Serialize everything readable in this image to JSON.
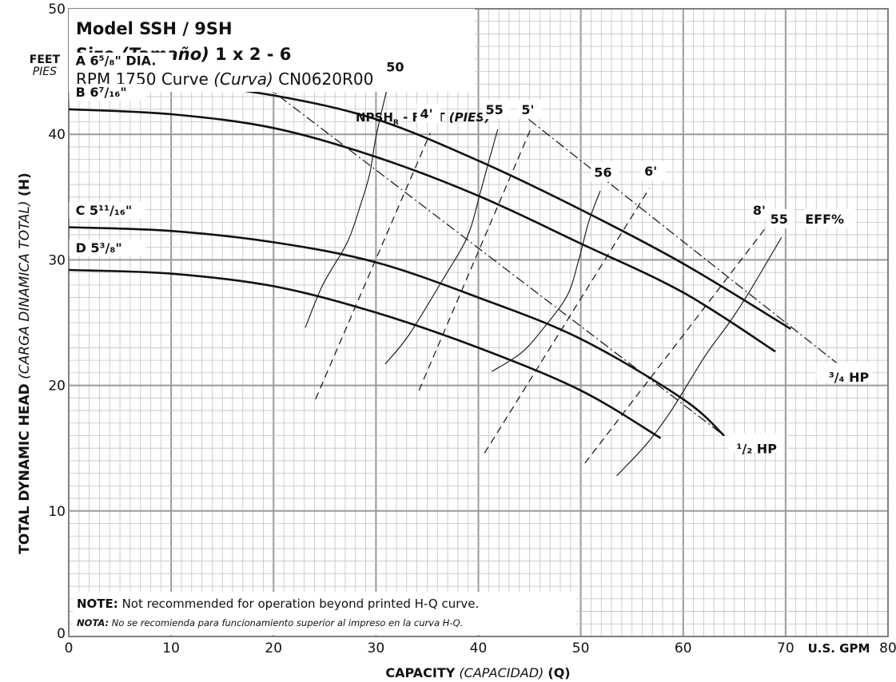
{
  "chart_data": {
    "type": "line",
    "title": {
      "model_prefix": "Model",
      "model": "SSH / 9SH",
      "size_prefix": "Size",
      "size_es": "(Tamaño)",
      "size": "1 x 2 - 6",
      "rpm": "RPM 1750",
      "curve_prefix": "Curve",
      "curve_es": "(Curva)",
      "curve": "CN0620R00"
    },
    "y_unit": "FEET",
    "y_unit_es": "PIES",
    "ylabel": "TOTAL DYNAMIC HEAD",
    "ylabel_es": "(CARGA DINAMICA TOTAL)",
    "ylabel_sym": "(H)",
    "xlabel": "CAPACITY",
    "xlabel_es": "(CAPACIDAD)",
    "xlabel_sym": "(Q)",
    "x_unit": "U.S. GPM",
    "xlim": [
      0,
      80
    ],
    "ylim": [
      0,
      50
    ],
    "x_ticks": [
      "0",
      "10",
      "20",
      "30",
      "40",
      "50",
      "60",
      "70",
      "80"
    ],
    "y_ticks": [
      "0",
      "10",
      "20",
      "30",
      "40",
      "50"
    ],
    "grid": true,
    "impeller_curves": [
      {
        "name": "A 6⁵/₈\" DIA.",
        "x": [
          0,
          10,
          20,
          30,
          40,
          50,
          60,
          70.5
        ],
        "y": [
          44.4,
          44.1,
          43.1,
          41.2,
          37.9,
          34.0,
          29.7,
          24.5
        ]
      },
      {
        "name": "B 6⁷/₁₆\"",
        "x": [
          0,
          10,
          20,
          30,
          40,
          50,
          60,
          69
        ],
        "y": [
          42.0,
          41.6,
          40.5,
          38.2,
          35.1,
          31.3,
          27.4,
          22.7
        ]
      },
      {
        "name": "C 5¹¹/₁₆\"",
        "x": [
          0,
          10,
          20,
          30,
          40,
          50,
          60,
          64
        ],
        "y": [
          32.6,
          32.3,
          31.4,
          29.8,
          27.0,
          23.7,
          18.9,
          16.0
        ]
      },
      {
        "name": "D 5³/₈\"",
        "x": [
          0,
          10,
          20,
          30,
          40,
          50,
          57.8
        ],
        "y": [
          29.2,
          28.9,
          27.9,
          25.8,
          23.0,
          19.6,
          15.8
        ]
      }
    ],
    "efficiency_label": "EFF%",
    "efficiency_curves": [
      {
        "name": "50",
        "x": [
          23.1,
          24.8,
          27.2,
          28.5,
          29.4,
          30.0,
          31.1
        ],
        "y": [
          24.6,
          28.0,
          31.4,
          34.4,
          36.9,
          39.8,
          43.7
        ]
      },
      {
        "name": "55",
        "x": [
          30.9,
          33.2,
          36.5,
          38.9,
          40.2,
          41.2,
          41.9
        ],
        "y": [
          21.7,
          24.0,
          28.4,
          31.8,
          35.4,
          38.4,
          40.4
        ]
      },
      {
        "name": "56",
        "x": [
          41.3,
          44.2,
          46.4,
          48.7,
          49.8,
          50.8,
          51.9
        ],
        "y": [
          21.1,
          22.6,
          24.6,
          27.2,
          30.0,
          33.1,
          35.5
        ]
      },
      {
        "name": "55",
        "x": [
          53.5,
          56.5,
          59.0,
          62.1,
          64.5,
          66.5,
          69.6
        ],
        "y": [
          12.8,
          15.4,
          18.2,
          22.3,
          25.0,
          27.5,
          31.8
        ]
      }
    ],
    "npsh_title": "NPSH",
    "npsh_sub": "R",
    "npsh_suffix": " - FEET",
    "npsh_suffix_es": "(PIES)",
    "npsh_curves": [
      {
        "name": "4'",
        "x": [
          24.1,
          35.3
        ],
        "y": [
          18.9,
          40.1
        ]
      },
      {
        "name": "5'",
        "x": [
          34.2,
          45.1
        ],
        "y": [
          19.6,
          40.4
        ]
      },
      {
        "name": "6'",
        "x": [
          40.6,
          56.7
        ],
        "y": [
          14.6,
          35.7
        ]
      },
      {
        "name": "8'",
        "x": [
          50.4,
          68.1
        ],
        "y": [
          13.8,
          32.6
        ]
      }
    ],
    "power_curves": [
      {
        "name": "¹/₂ HP",
        "x": [
          13.7,
          64.0
        ],
        "y": [
          47.3,
          16.0
        ]
      },
      {
        "name": "³/₄ HP",
        "x": [
          44.9,
          75.9
        ],
        "y": [
          41.2,
          21.2
        ]
      }
    ],
    "notes": [
      {
        "label": "NOTE:",
        "text": " Not recommended for operation beyond printed H-Q curve."
      },
      {
        "label": "NOTA:",
        "text": " No se recomienda para funcionamiento superior al impreso en la curva H-Q."
      }
    ]
  }
}
